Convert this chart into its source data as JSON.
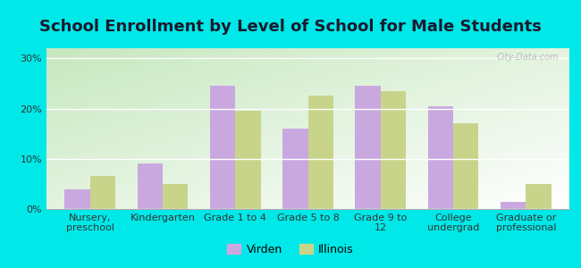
{
  "title": "School Enrollment by Level of School for Male Students",
  "categories": [
    "Nursery,\npreschool",
    "Kindergarten",
    "Grade 1 to 4",
    "Grade 5 to 8",
    "Grade 9 to\n12",
    "College\nundergrad",
    "Graduate or\nprofessional"
  ],
  "virden": [
    4.0,
    9.0,
    24.5,
    16.0,
    24.5,
    20.5,
    1.5
  ],
  "illinois": [
    6.5,
    5.0,
    19.5,
    22.5,
    23.5,
    17.0,
    5.0
  ],
  "virden_color": "#c9a8e0",
  "illinois_color": "#c8d48a",
  "background_color": "#00e8e8",
  "plot_bg_top_left": "#c8e8c0",
  "plot_bg_bottom_right": "#f8fef8",
  "ylim": [
    0,
    32
  ],
  "yticks": [
    0,
    10,
    20,
    30
  ],
  "ytick_labels": [
    "0%",
    "10%",
    "20%",
    "30%"
  ],
  "legend_virden": "Virden",
  "legend_illinois": "Illinois",
  "bar_width": 0.35,
  "title_fontsize": 13,
  "tick_fontsize": 8
}
